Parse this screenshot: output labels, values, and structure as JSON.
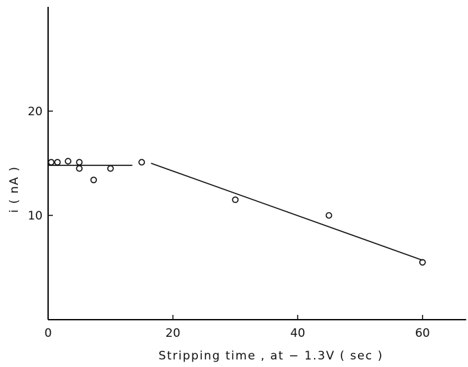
{
  "chart_data": {
    "type": "scatter",
    "title": "",
    "xlabel": "Stripping time , at − 1.3V   ( sec )",
    "ylabel": "i  ( nA )",
    "xlim": [
      0,
      67
    ],
    "ylim": [
      0,
      30
    ],
    "x_ticks": [
      0,
      20,
      40,
      60
    ],
    "y_ticks": [
      10,
      20
    ],
    "x_tick_labels": [
      "0",
      "20",
      "40",
      "60"
    ],
    "y_tick_labels": [
      "10",
      "20"
    ],
    "grid": false,
    "marker": "open-circle",
    "series": [
      {
        "points": [
          {
            "x": 0.5,
            "y": 15.1
          },
          {
            "x": 1.5,
            "y": 15.1
          },
          {
            "x": 3.2,
            "y": 15.2
          },
          {
            "x": 5.0,
            "y": 15.1
          },
          {
            "x": 5.0,
            "y": 14.5
          },
          {
            "x": 7.3,
            "y": 13.4
          },
          {
            "x": 10.0,
            "y": 14.5
          },
          {
            "x": 15.0,
            "y": 15.1
          },
          {
            "x": 30.0,
            "y": 11.5
          },
          {
            "x": 45.0,
            "y": 10.0
          },
          {
            "x": 60.0,
            "y": 5.5
          }
        ]
      }
    ],
    "fit_lines": [
      {
        "x": [
          0,
          13.5
        ],
        "y": [
          14.8,
          14.8
        ]
      },
      {
        "x": [
          16.5,
          60
        ],
        "y": [
          15.0,
          5.7
        ]
      }
    ]
  }
}
